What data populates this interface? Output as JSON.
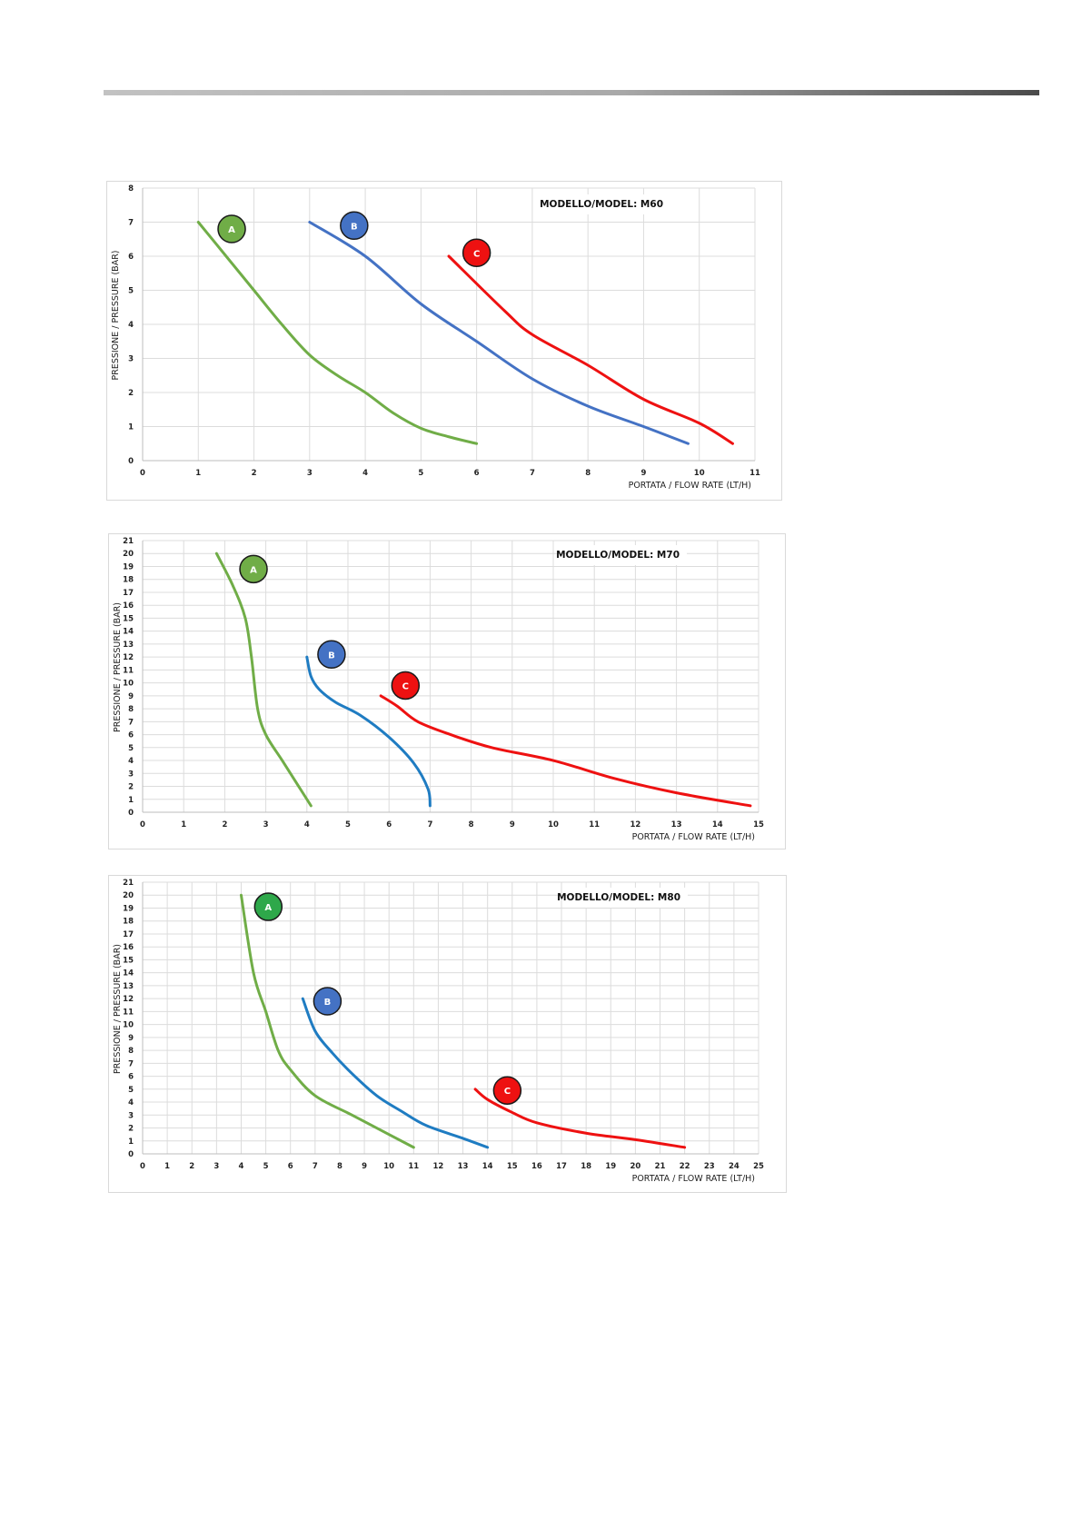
{
  "colors": {
    "A": "#70ad47",
    "B": "#4472c4",
    "C": "#ee1111",
    "A_M80": "#2ea84a",
    "B_alt": "#1f7cc2"
  },
  "chart_data": [
    {
      "type": "line",
      "model_label": "MODELLO/MODEL: M60",
      "xlabel": "PORTATA / FLOW RATE (LT/H)",
      "ylabel": "PRESSIONE / PRESSURE (BAR)",
      "xlim": [
        0,
        11
      ],
      "ylim": [
        0,
        8
      ],
      "xticks": [
        0,
        1,
        2,
        3,
        4,
        5,
        6,
        7,
        8,
        9,
        10,
        11
      ],
      "yticks": [
        0,
        1,
        2,
        3,
        4,
        5,
        6,
        7,
        8
      ],
      "grid": true,
      "series": [
        {
          "name": "A",
          "color": "#70ad47",
          "x": [
            1,
            1.5,
            2,
            2.5,
            3,
            3.5,
            4,
            4.5,
            5,
            5.5,
            6
          ],
          "y": [
            7,
            6,
            5,
            4,
            3.1,
            2.5,
            2,
            1.4,
            0.95,
            0.7,
            0.5
          ]
        },
        {
          "name": "B",
          "color": "#4472c4",
          "x": [
            3,
            4,
            5,
            6,
            7,
            8,
            9,
            9.8
          ],
          "y": [
            7,
            6,
            4.6,
            3.5,
            2.4,
            1.6,
            1,
            0.5
          ]
        },
        {
          "name": "C",
          "color": "#ee1111",
          "x": [
            5.5,
            6.5,
            7,
            8,
            9,
            10,
            10.6
          ],
          "y": [
            6,
            4.4,
            3.7,
            2.8,
            1.8,
            1.1,
            0.5
          ]
        }
      ],
      "badges": [
        {
          "label": "A",
          "x": 1.6,
          "y": 6.8,
          "color": "#70ad47"
        },
        {
          "label": "B",
          "x": 3.8,
          "y": 6.9,
          "color": "#4472c4"
        },
        {
          "label": "C",
          "x": 6,
          "y": 6.1,
          "color": "#ee1111"
        }
      ]
    },
    {
      "type": "line",
      "model_label": "MODELLO/MODEL: M70",
      "xlabel": "PORTATA / FLOW RATE (LT/H)",
      "ylabel": "PRESSIONE / PRESSURE (BAR)",
      "xlim": [
        0,
        15
      ],
      "ylim": [
        0,
        21
      ],
      "xticks": [
        0,
        1,
        2,
        3,
        4,
        5,
        6,
        7,
        8,
        9,
        10,
        11,
        12,
        13,
        14,
        15
      ],
      "yticks": [
        0,
        1,
        2,
        3,
        4,
        5,
        6,
        7,
        8,
        9,
        10,
        11,
        12,
        13,
        14,
        15,
        16,
        17,
        18,
        19,
        20,
        21
      ],
      "grid": true,
      "series": [
        {
          "name": "A",
          "color": "#70ad47",
          "x": [
            1.8,
            2.2,
            2.5,
            2.65,
            2.8,
            3.0,
            3.4,
            3.8,
            4.1
          ],
          "y": [
            20,
            17.5,
            15,
            12,
            8,
            6,
            4,
            2,
            0.5
          ]
        },
        {
          "name": "B",
          "color": "#1f7cc2",
          "x": [
            4.0,
            4.1,
            4.3,
            4.7,
            5.3,
            6.0,
            6.6,
            6.95,
            7.0
          ],
          "y": [
            12,
            10.5,
            9.5,
            8.5,
            7.5,
            5.8,
            3.8,
            1.8,
            0.5
          ]
        },
        {
          "name": "C",
          "color": "#ee1111",
          "x": [
            5.8,
            6.2,
            6.7,
            7.5,
            8.5,
            10,
            11.5,
            13,
            14.8
          ],
          "y": [
            9,
            8.2,
            7,
            6,
            5,
            4,
            2.6,
            1.5,
            0.5
          ]
        }
      ],
      "badges": [
        {
          "label": "A",
          "x": 2.7,
          "y": 18.8,
          "color": "#70ad47"
        },
        {
          "label": "B",
          "x": 4.6,
          "y": 12.2,
          "color": "#4472c4"
        },
        {
          "label": "C",
          "x": 6.4,
          "y": 9.8,
          "color": "#ee1111"
        }
      ]
    },
    {
      "type": "line",
      "model_label": "MODELLO/MODEL: M80",
      "xlabel": "PORTATA / FLOW RATE (LT/H)",
      "ylabel": "PRESSIONE / PRESSURE (BAR)",
      "xlim": [
        0,
        25
      ],
      "ylim": [
        0,
        21
      ],
      "xticks": [
        0,
        1,
        2,
        3,
        4,
        5,
        6,
        7,
        8,
        9,
        10,
        11,
        12,
        13,
        14,
        15,
        16,
        17,
        18,
        19,
        20,
        21,
        22,
        23,
        24,
        25
      ],
      "yticks": [
        0,
        1,
        2,
        3,
        4,
        5,
        6,
        7,
        8,
        9,
        10,
        11,
        12,
        13,
        14,
        15,
        16,
        17,
        18,
        19,
        20,
        21
      ],
      "grid": true,
      "series": [
        {
          "name": "A",
          "color": "#70ad47",
          "x": [
            4,
            4.5,
            5,
            5.5,
            6,
            7,
            8.5,
            10,
            11
          ],
          "y": [
            20,
            14,
            11,
            8,
            6.5,
            4.5,
            3,
            1.5,
            0.5
          ]
        },
        {
          "name": "B",
          "color": "#1f7cc2",
          "x": [
            6.5,
            7,
            7.7,
            8.5,
            9.5,
            10.5,
            11.5,
            13,
            14
          ],
          "y": [
            12,
            9.5,
            7.8,
            6.2,
            4.5,
            3.3,
            2.2,
            1.2,
            0.5
          ]
        },
        {
          "name": "C",
          "color": "#ee1111",
          "x": [
            13.5,
            14,
            15,
            16,
            18,
            20,
            22
          ],
          "y": [
            5,
            4.2,
            3.2,
            2.4,
            1.6,
            1.1,
            0.5
          ]
        }
      ],
      "badges": [
        {
          "label": "A",
          "x": 5.1,
          "y": 19.1,
          "color": "#2ea84a"
        },
        {
          "label": "B",
          "x": 7.5,
          "y": 11.8,
          "color": "#4472c4"
        },
        {
          "label": "C",
          "x": 14.8,
          "y": 4.9,
          "color": "#ee1111"
        }
      ]
    }
  ]
}
